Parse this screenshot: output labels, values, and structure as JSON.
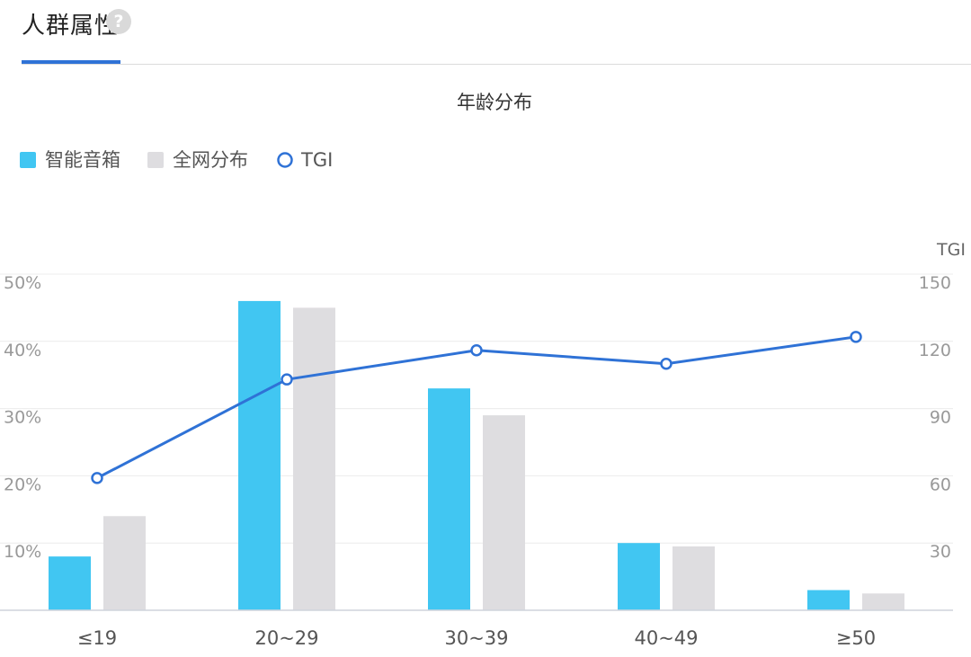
{
  "tab": {
    "label": "人群属性",
    "help_icon": "question-circle-icon"
  },
  "colors": {
    "accent": "#2f72d6",
    "series_a": "#41c6f2",
    "series_b": "#dedde0",
    "line": "#2f72d6"
  },
  "chart_data": {
    "type": "bar",
    "title": "年龄分布",
    "categories": [
      "≤19",
      "20~29",
      "30~39",
      "40~49",
      "≥50"
    ],
    "series": [
      {
        "name": "智能音箱",
        "type": "bar",
        "axis": "left",
        "values": [
          8,
          46,
          33,
          10,
          3
        ]
      },
      {
        "name": "全网分布",
        "type": "bar",
        "axis": "left",
        "values": [
          14,
          45,
          29,
          9.5,
          2.5
        ]
      },
      {
        "name": "TGI",
        "type": "line",
        "axis": "right",
        "values": [
          59,
          103,
          116,
          110,
          122
        ]
      }
    ],
    "y_left": {
      "ticks": [
        "10%",
        "20%",
        "30%",
        "40%",
        "50%"
      ],
      "range": [
        0,
        50
      ]
    },
    "y_right": {
      "label": "TGI",
      "ticks": [
        "30",
        "60",
        "90",
        "120",
        "150"
      ],
      "range": [
        0,
        150
      ]
    },
    "legend_position": "top-left",
    "grid": true
  }
}
